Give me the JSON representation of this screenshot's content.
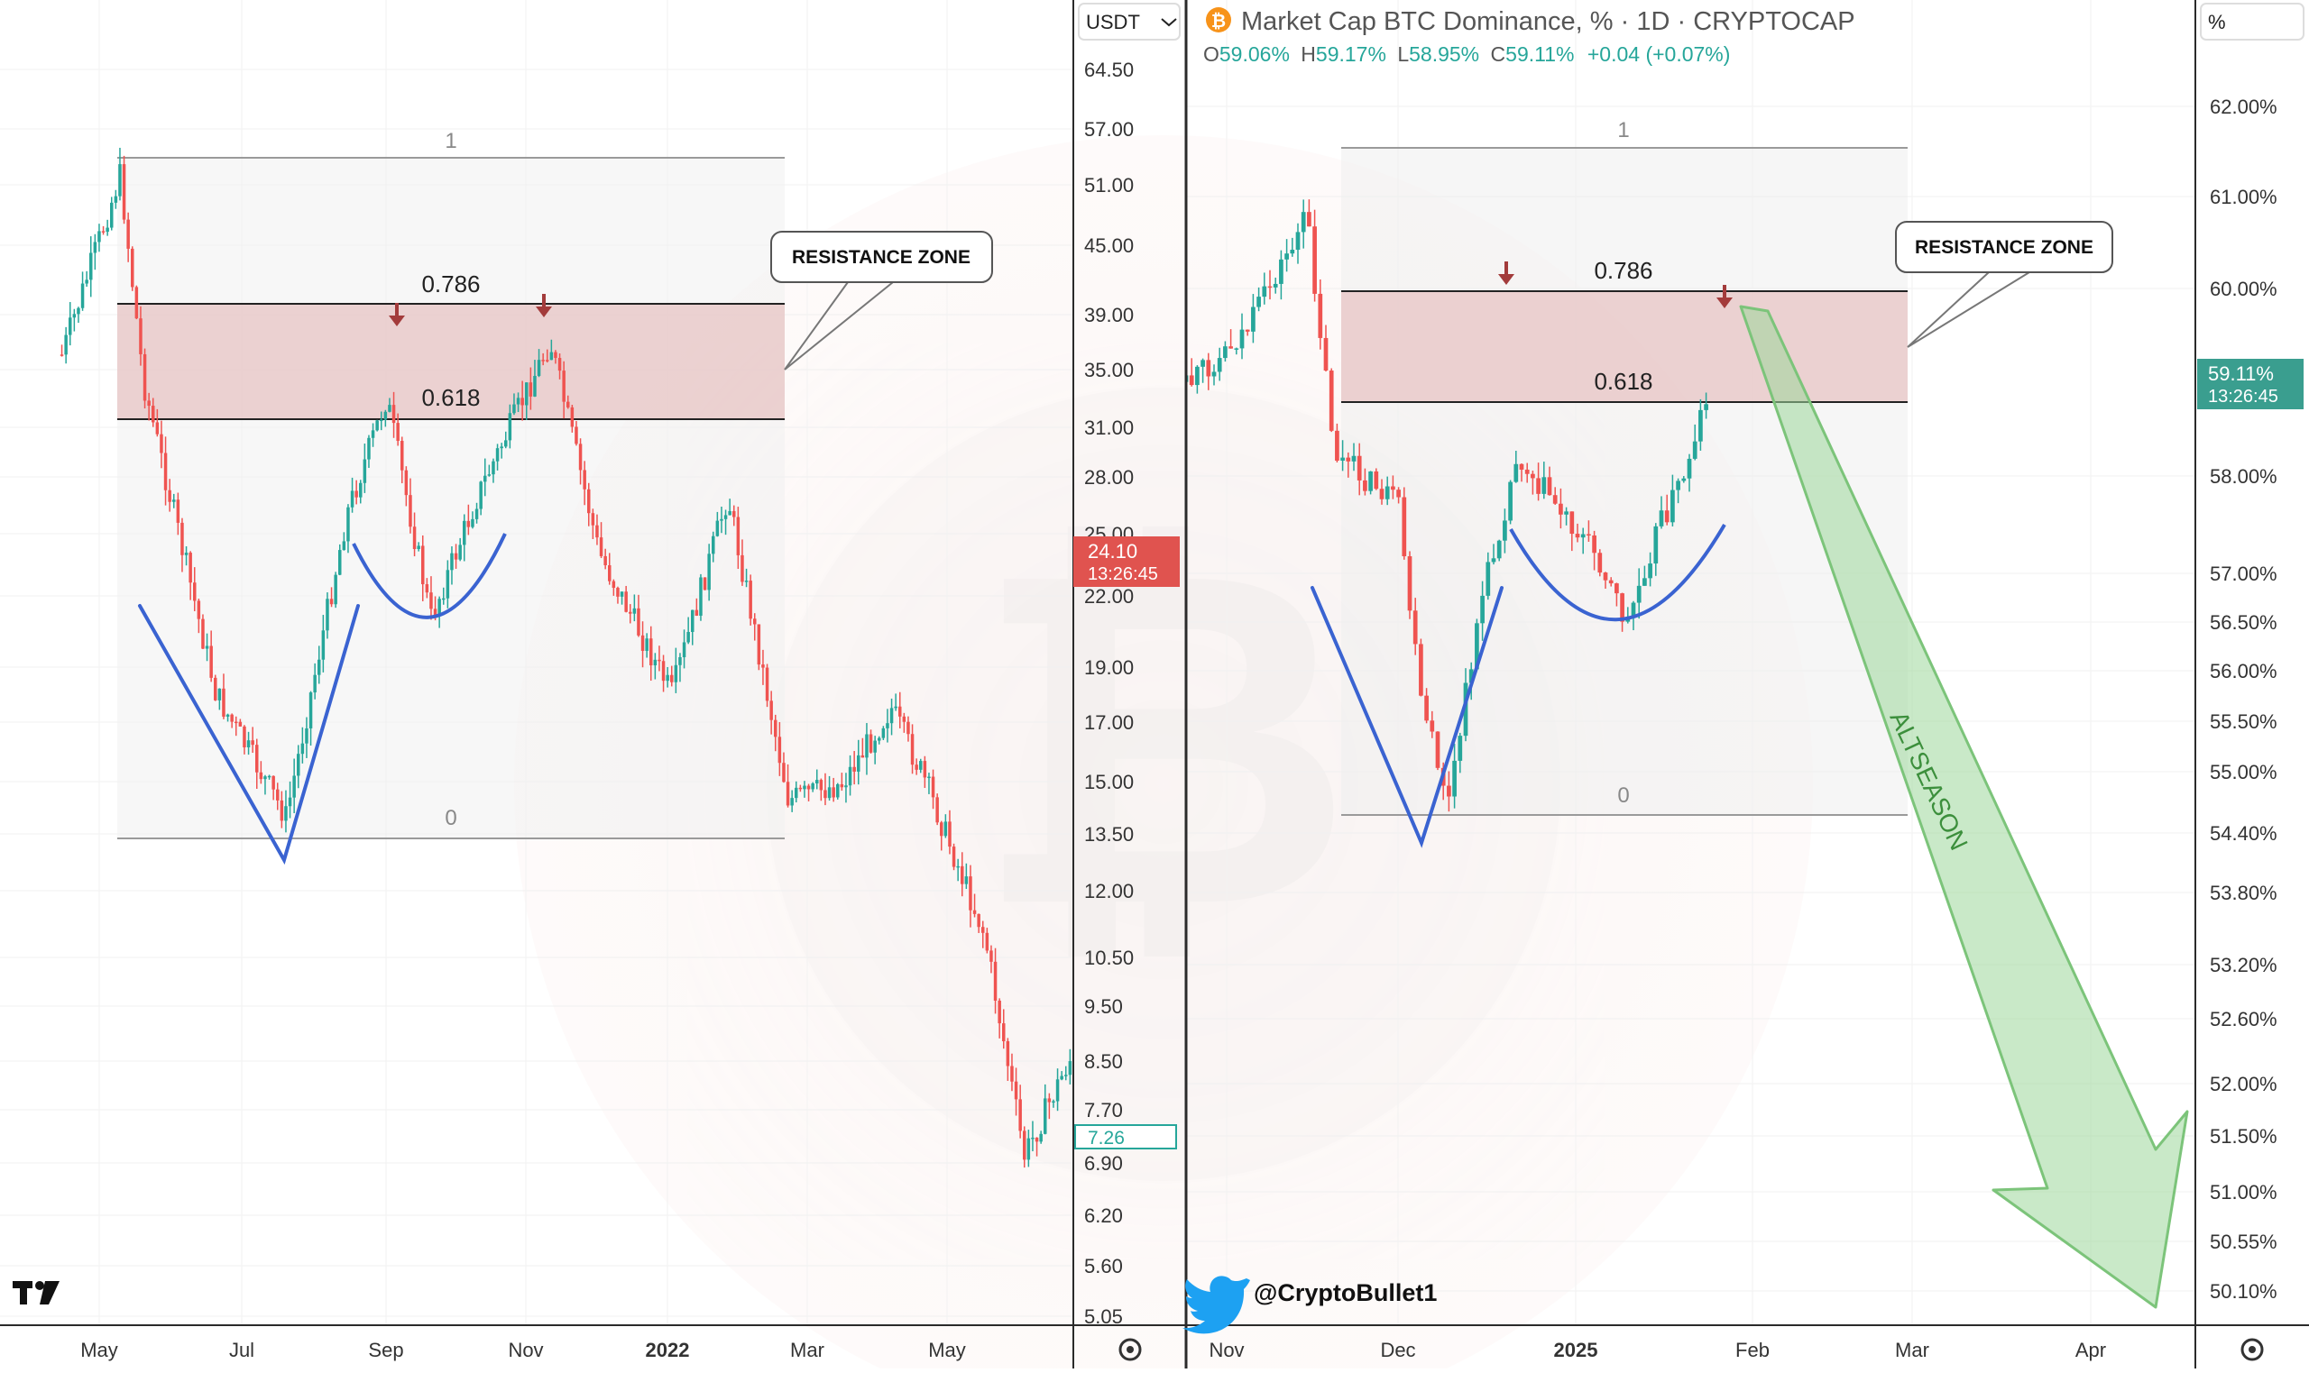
{
  "left_chart": {
    "currency_selector": "USDT",
    "price_scale": [
      "64.50",
      "57.00",
      "51.00",
      "45.00",
      "39.00",
      "35.00",
      "31.00",
      "28.00",
      "25.00",
      "22.00",
      "19.00",
      "17.00",
      "15.00",
      "13.50",
      "12.00",
      "10.50",
      "9.50",
      "8.50",
      "7.70",
      "6.90",
      "6.20",
      "5.60",
      "5.05"
    ],
    "time_scale": [
      "May",
      "Jul",
      "Sep",
      "Nov",
      "2022",
      "Mar",
      "May"
    ],
    "last_price_badge": {
      "price": "24.10",
      "countdown": "13:26:45",
      "color": "#e0534f"
    },
    "secondary_price_badge": "7.26",
    "fib_levels": {
      "level_1": "1",
      "level_0786": "0.786",
      "level_0618": "0.618",
      "level_0": "0"
    },
    "callout": "RESISTANCE ZONE",
    "logo": "TV",
    "settings_icon": "settings-icon"
  },
  "right_chart": {
    "header": {
      "coin_icon": "bitcoin-icon",
      "title": "Market Cap BTC Dominance, % · 1D · CRYPTOCAP",
      "ohlc": {
        "o_label": "O",
        "o": "59.06%",
        "h_label": "H",
        "h": "59.17%",
        "l_label": "L",
        "l": "58.95%",
        "c_label": "C",
        "c": "59.11%",
        "change": "+0.04 (+0.07%)"
      }
    },
    "unit_selector": "%",
    "price_scale": [
      "62.00%",
      "61.00%",
      "60.00%",
      "58.00%",
      "57.00%",
      "56.50%",
      "56.00%",
      "55.50%",
      "55.00%",
      "54.40%",
      "53.80%",
      "53.20%",
      "52.60%",
      "52.00%",
      "51.50%",
      "51.00%",
      "50.55%",
      "50.10%"
    ],
    "time_scale": [
      "Nov",
      "Dec",
      "2025",
      "Feb",
      "Mar",
      "Apr"
    ],
    "last_price_badge": {
      "price": "59.11%",
      "countdown": "13:26:45",
      "color": "#3a9e8f"
    },
    "fib_levels": {
      "level_1": "1",
      "level_0786": "0.786",
      "level_0618": "0.618",
      "level_0": "0"
    },
    "callout": "RESISTANCE ZONE",
    "arrow_label": "ALTSEASON",
    "twitter_handle": "@CryptoBullet1",
    "settings_icon": "settings-icon"
  },
  "colors": {
    "up": "#26a69a",
    "down": "#ef5350",
    "zone": "#e9c9c9",
    "pattern": "#3867d6",
    "arrow": "#8fce8a"
  },
  "chart_data": [
    {
      "type": "candlestick",
      "name": "",
      "ylim": [
        5.05,
        64.5
      ],
      "yscale": "log",
      "close_path_points": [
        [
          "2021-04-15",
          36.0
        ],
        [
          "2021-05-10",
          52.0
        ],
        [
          "2021-05-20",
          34.0
        ],
        [
          "2021-06-20",
          18.0
        ],
        [
          "2021-07-20",
          14.0
        ],
        [
          "2021-08-15",
          26.0
        ],
        [
          "2021-09-01",
          33.0
        ],
        [
          "2021-09-20",
          21.0
        ],
        [
          "2021-10-10",
          27.0
        ],
        [
          "2021-11-10",
          37.0
        ],
        [
          "2021-12-01",
          24.0
        ],
        [
          "2022-01-01",
          18.0
        ],
        [
          "2022-01-25",
          27.0
        ],
        [
          "2022-02-20",
          14.5
        ],
        [
          "2022-03-15",
          15.0
        ],
        [
          "2022-04-05",
          17.5
        ],
        [
          "2022-04-20",
          15.0
        ],
        [
          "2022-05-15",
          11.0
        ],
        [
          "2022-06-01",
          7.0
        ],
        [
          "2022-06-20",
          8.5
        ],
        [
          "2022-07-05",
          9.2
        ],
        [
          "2022-07-20",
          7.26
        ]
      ]
    },
    {
      "type": "candlestick",
      "name": "",
      "ylim": [
        50.1,
        62.0
      ],
      "close_path_points": [
        [
          "2024-10-20",
          58.9
        ],
        [
          "2024-11-05",
          59.8
        ],
        [
          "2024-11-15",
          60.9
        ],
        [
          "2024-11-20",
          58.5
        ],
        [
          "2024-12-01",
          58.0
        ],
        [
          "2024-12-05",
          56.0
        ],
        [
          "2024-12-10",
          55.0
        ],
        [
          "2024-12-15",
          56.9
        ],
        [
          "2024-12-22",
          58.5
        ],
        [
          "2024-12-29",
          58.0
        ],
        [
          "2025-01-05",
          57.5
        ],
        [
          "2025-01-10",
          56.8
        ],
        [
          "2025-01-15",
          57.7
        ],
        [
          "2025-01-20",
          58.3
        ],
        [
          "2025-01-24",
          59.11
        ]
      ]
    }
  ]
}
